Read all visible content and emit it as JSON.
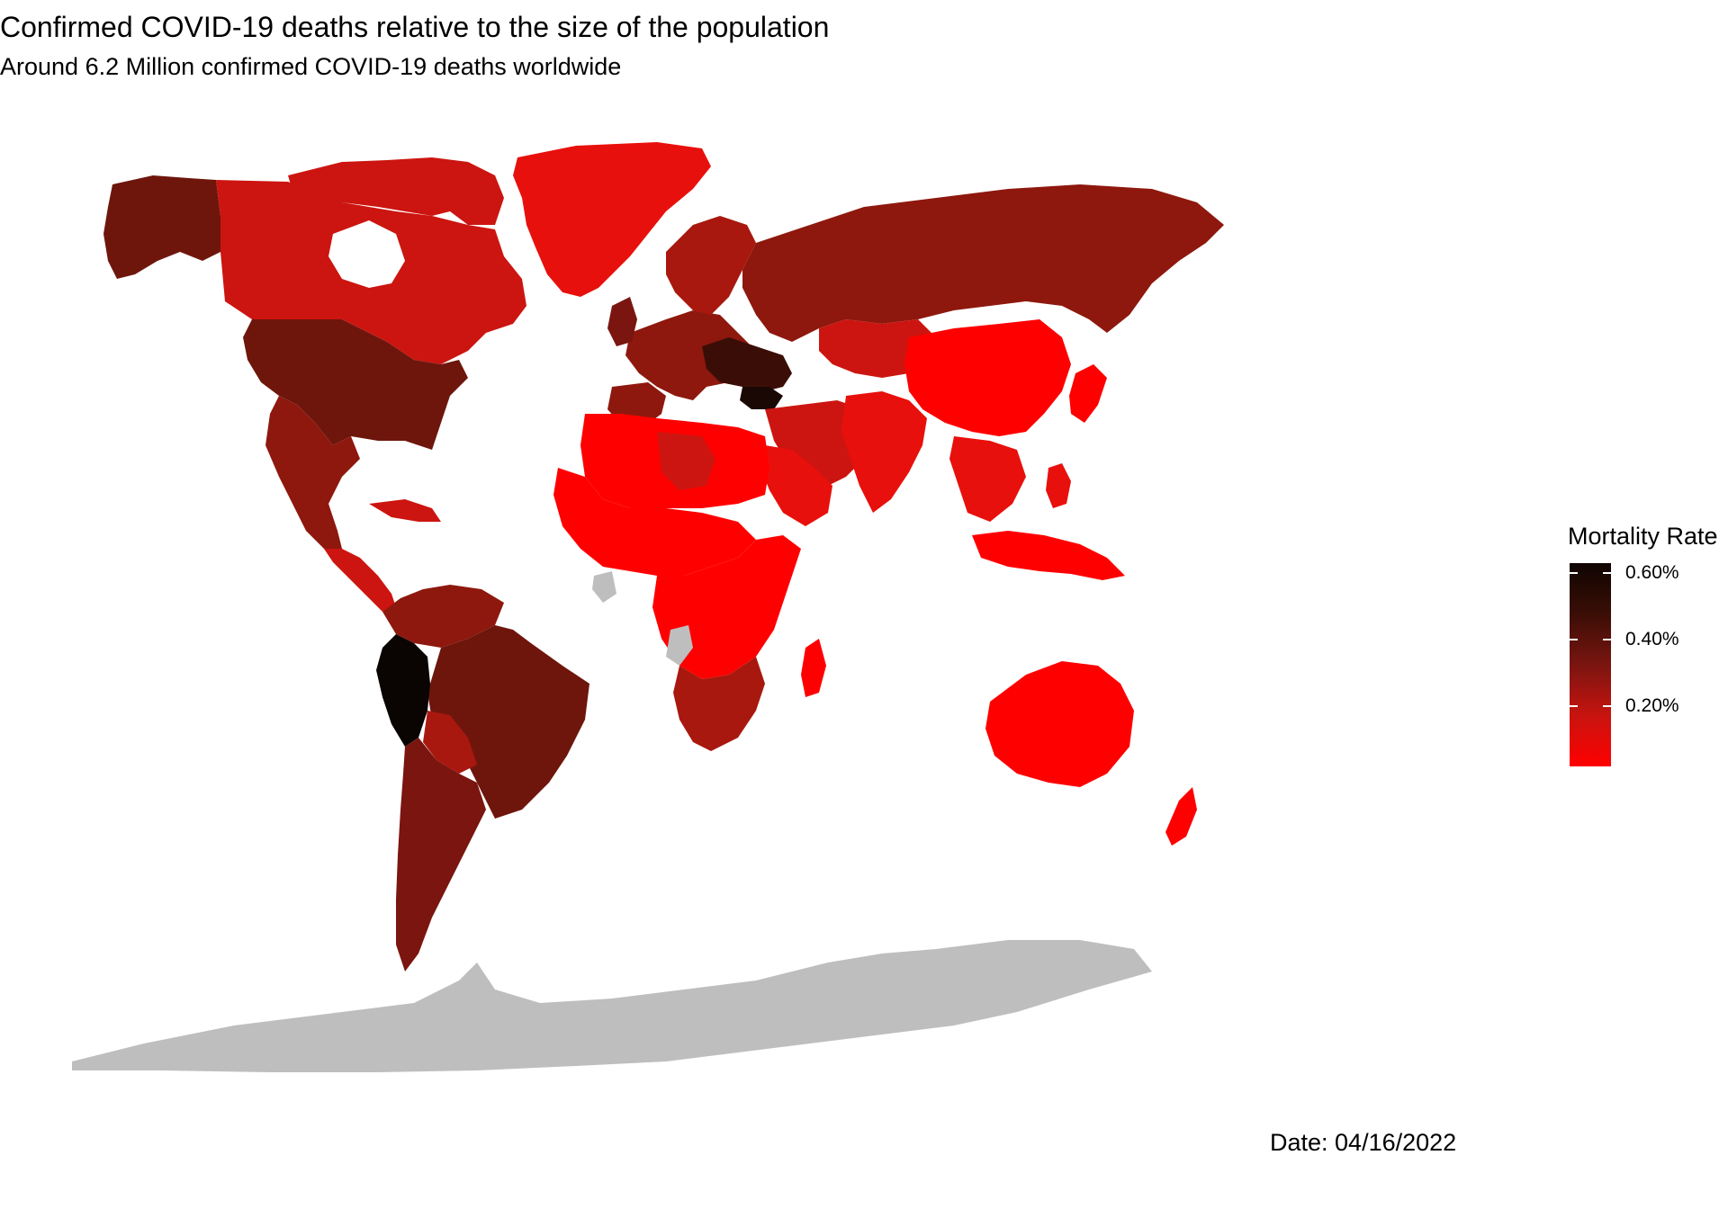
{
  "title": "Confirmed COVID-19 deaths relative to the size of the population",
  "subtitle": "Around 6.2 Million confirmed COVID-19 deaths worldwide",
  "legend": {
    "title": "Mortality Rate",
    "labels": [
      "0.60%",
      "0.40%",
      "0.20%"
    ],
    "scale_min_color": "#ff0000",
    "scale_max_color": "#0f0502",
    "no_data_color": "#bebebe"
  },
  "date_label": "Date: 04/16/2022",
  "colors": {
    "very_low": "#ff0000",
    "low": "#e8100c",
    "medium_low": "#cc1510",
    "medium": "#a8180f",
    "medium_high": "#8e180e",
    "high": "#6e160c",
    "very_high": "#1a0805",
    "no_data": "#bebebe"
  }
}
